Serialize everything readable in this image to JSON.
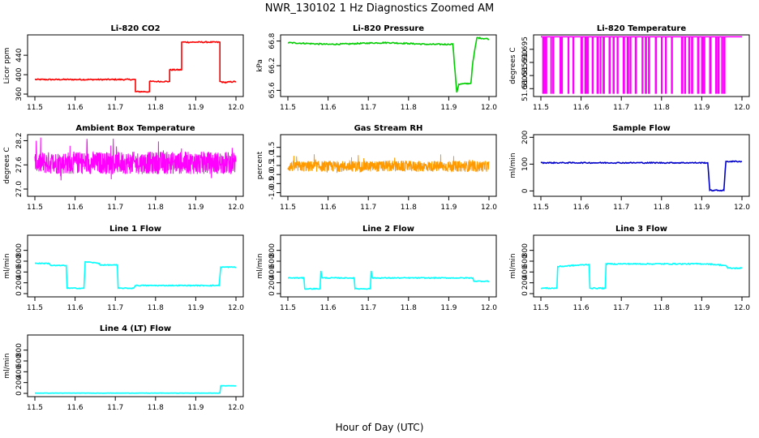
{
  "figure": {
    "title": "NWR_130102  1 Hz Diagnostics Zoomed AM",
    "xlabel": "Hour of Day (UTC)"
  },
  "chart_data": [
    {
      "type": "line",
      "title": "Li-820 CO2",
      "xlabel": "",
      "ylabel": "Licor ppm",
      "color": "#ff0000",
      "xlim": [
        11.5,
        12.0
      ],
      "ylim": [
        355,
        482
      ],
      "xticks": [
        11.5,
        11.6,
        11.7,
        11.8,
        11.9,
        12.0
      ],
      "xtick_labels": [
        "11.5",
        "11.6",
        "11.7",
        "11.8",
        "11.9",
        "12.0"
      ],
      "yticks": [
        360,
        400,
        440
      ],
      "ytick_labels": [
        "360",
        "400",
        "440"
      ],
      "x": [
        11.5,
        11.75,
        11.75,
        11.7501,
        11.7501,
        11.785,
        11.785,
        11.805,
        11.805,
        11.835,
        11.835,
        11.865,
        11.865,
        11.93,
        11.93,
        11.96,
        11.96,
        11.97,
        12.0
      ],
      "y": [
        390,
        390,
        385,
        385,
        365,
        365,
        386,
        386,
        386,
        386,
        410,
        410,
        467,
        467,
        467,
        467,
        386,
        384,
        386
      ],
      "noise": 1.2
    },
    {
      "type": "line",
      "title": "Li-820 Pressure",
      "xlabel": "",
      "ylabel": "kPa",
      "color": "#00cc00",
      "xlim": [
        11.5,
        12.0
      ],
      "ylim": [
        65.45,
        66.95
      ],
      "xticks": [
        11.5,
        11.6,
        11.7,
        11.8,
        11.9,
        12.0
      ],
      "xtick_labels": [
        "11.5",
        "11.6",
        "11.7",
        "11.8",
        "11.9",
        "12.0"
      ],
      "yticks": [
        65.6,
        66.2,
        66.8
      ],
      "ytick_labels": [
        "65.6",
        "66.2",
        "66.8"
      ],
      "x": [
        11.5,
        11.55,
        11.6,
        11.65,
        11.7,
        11.75,
        11.8,
        11.85,
        11.9,
        11.91,
        11.92,
        11.925,
        11.955,
        11.96,
        11.97,
        12.0
      ],
      "y": [
        66.76,
        66.74,
        66.72,
        66.73,
        66.75,
        66.76,
        66.74,
        66.72,
        66.72,
        66.73,
        65.55,
        65.75,
        65.77,
        66.3,
        66.88,
        66.85
      ],
      "noise": 0.015
    },
    {
      "type": "line",
      "title": "Li-820 Temperature",
      "xlabel": "",
      "ylabel": "degrees C",
      "color": "#ff00ff",
      "xlim": [
        11.5,
        12.0
      ],
      "ylim": [
        51.677,
        51.7005
      ],
      "xticks": [
        11.5,
        11.6,
        11.7,
        11.8,
        11.9,
        12.0
      ],
      "xtick_labels": [
        "11.5",
        "11.6",
        "11.7",
        "11.8",
        "11.9",
        "12.0"
      ],
      "yticks": [
        51.68,
        51.685,
        51.69,
        51.695
      ],
      "ytick_labels": [
        "51.680",
        "51.685",
        "51.690",
        "51.695"
      ],
      "levels": [
        51.6783,
        51.6998
      ],
      "drops": [
        11.505,
        11.508,
        11.512,
        11.525,
        11.53,
        11.548,
        11.552,
        11.568,
        11.58,
        11.6,
        11.61,
        11.615,
        11.628,
        11.64,
        11.648,
        11.655,
        11.67,
        11.68,
        11.69,
        11.705,
        11.715,
        11.722,
        11.735,
        11.752,
        11.76,
        11.768,
        11.785,
        11.8,
        11.81,
        11.825,
        11.85,
        11.858,
        11.868,
        11.875,
        11.89,
        11.9,
        11.905,
        11.92,
        11.935,
        11.94,
        11.95,
        11.955
      ]
    },
    {
      "type": "line",
      "title": "Ambient Box Temperature",
      "xlabel": "",
      "ylabel": "degrees C",
      "color": "#ff00ff",
      "xlim": [
        11.5,
        12.0
      ],
      "ylim": [
        26.82,
        28.35
      ],
      "xticks": [
        11.5,
        11.6,
        11.7,
        11.8,
        11.9,
        12.0
      ],
      "xtick_labels": [
        "11.5",
        "11.6",
        "11.7",
        "11.8",
        "11.9",
        "12.0"
      ],
      "yticks": [
        27.0,
        27.6,
        28.2
      ],
      "ytick_labels": [
        "27.0",
        "27.6",
        "28.2"
      ],
      "center": 27.65,
      "spread": 0.28
    },
    {
      "type": "line",
      "title": "Gas Stream RH",
      "xlabel": "",
      "ylabel": "percent",
      "color": "#ff9900",
      "xlim": [
        11.5,
        12.0
      ],
      "ylim": [
        -1.2,
        2.2
      ],
      "xticks": [
        11.5,
        11.6,
        11.7,
        11.8,
        11.9,
        12.0
      ],
      "xtick_labels": [
        "11.5",
        "11.6",
        "11.7",
        "11.8",
        "11.9",
        "12.0"
      ],
      "yticks": [
        -1.0,
        -0.5,
        0.0,
        0.5,
        1.0,
        1.5
      ],
      "ytick_labels": [
        "-1.0",
        "-0.5",
        "0.0",
        "0.5",
        "1.0",
        "1.5"
      ],
      "center": 0.45,
      "spread": 0.3
    },
    {
      "type": "line",
      "title": "Sample Flow",
      "xlabel": "",
      "ylabel": "ml/min",
      "color": "#0000cc",
      "xlim": [
        11.5,
        12.0
      ],
      "ylim": [
        -20,
        210
      ],
      "xticks": [
        11.5,
        11.6,
        11.7,
        11.8,
        11.9,
        12.0
      ],
      "xtick_labels": [
        "11.5",
        "11.6",
        "11.7",
        "11.8",
        "11.9",
        "12.0"
      ],
      "yticks": [
        0,
        100,
        200
      ],
      "ytick_labels": [
        "0",
        "100",
        "200"
      ],
      "x": [
        11.5,
        11.915,
        11.92,
        11.955,
        11.96,
        12.0
      ],
      "y": [
        105,
        105,
        2,
        2,
        110,
        110
      ],
      "noise": 2
    },
    {
      "type": "line",
      "title": "Line 1 Flow",
      "xlabel": "",
      "ylabel": "ml/min",
      "color": "#00ffff",
      "xlim": [
        11.5,
        12.0
      ],
      "ylim": [
        -60,
        1080
      ],
      "xticks": [
        11.5,
        11.6,
        11.7,
        11.8,
        11.9,
        12.0
      ],
      "xtick_labels": [
        "11.5",
        "11.6",
        "11.7",
        "11.8",
        "11.9",
        "12.0"
      ],
      "yticks": [
        0,
        200,
        400,
        600,
        800
      ],
      "ytick_labels": [
        "0",
        "200",
        "400",
        "600",
        "800"
      ],
      "x": [
        11.5,
        11.535,
        11.54,
        11.578,
        11.58,
        11.622,
        11.625,
        11.66,
        11.662,
        11.705,
        11.707,
        11.745,
        11.75,
        11.958,
        11.962,
        12.0
      ],
      "y": [
        560,
        560,
        520,
        520,
        100,
        100,
        590,
        560,
        530,
        530,
        100,
        100,
        150,
        150,
        490,
        490
      ],
      "noise": 8
    },
    {
      "type": "line",
      "title": "Line 2 Flow",
      "xlabel": "",
      "ylabel": "ml/min",
      "color": "#00ffff",
      "xlim": [
        11.5,
        12.0
      ],
      "ylim": [
        -60,
        1080
      ],
      "xticks": [
        11.5,
        11.6,
        11.7,
        11.8,
        11.9,
        12.0
      ],
      "xtick_labels": [
        "11.5",
        "11.6",
        "11.7",
        "11.8",
        "11.9",
        "12.0"
      ],
      "yticks": [
        0,
        200,
        400,
        600,
        800
      ],
      "ytick_labels": [
        "0",
        "200",
        "400",
        "600",
        "800"
      ],
      "x": [
        11.5,
        11.54,
        11.542,
        11.58,
        11.582,
        11.585,
        11.665,
        11.667,
        11.705,
        11.707,
        11.71,
        11.96,
        11.962,
        12.0
      ],
      "y": [
        290,
        290,
        90,
        90,
        420,
        290,
        290,
        90,
        90,
        420,
        290,
        290,
        230,
        230
      ],
      "noise": 8
    },
    {
      "type": "line",
      "title": "Line 3 Flow",
      "xlabel": "",
      "ylabel": "ml/min",
      "color": "#00ffff",
      "xlim": [
        11.5,
        12.0
      ],
      "ylim": [
        -60,
        1080
      ],
      "xticks": [
        11.5,
        11.6,
        11.7,
        11.8,
        11.9,
        12.0
      ],
      "xtick_labels": [
        "11.5",
        "11.6",
        "11.7",
        "11.8",
        "11.9",
        "12.0"
      ],
      "yticks": [
        0,
        200,
        400,
        600,
        800
      ],
      "ytick_labels": [
        "0",
        "200",
        "400",
        "600",
        "800"
      ],
      "x": [
        11.5,
        11.54,
        11.542,
        11.62,
        11.622,
        11.66,
        11.662,
        11.7,
        11.9,
        11.915,
        11.96,
        11.965,
        12.0
      ],
      "y": [
        100,
        100,
        500,
        540,
        100,
        100,
        550,
        550,
        550,
        550,
        520,
        470,
        470
      ],
      "noise": 10
    },
    {
      "type": "line",
      "title": "Line 4 (LT) Flow",
      "xlabel": "",
      "ylabel": "ml/min",
      "color": "#00ffff",
      "xlim": [
        11.5,
        12.0
      ],
      "ylim": [
        -60,
        1080
      ],
      "xticks": [
        11.5,
        11.6,
        11.7,
        11.8,
        11.9,
        12.0
      ],
      "xtick_labels": [
        "11.5",
        "11.6",
        "11.7",
        "11.8",
        "11.9",
        "12.0"
      ],
      "yticks": [
        0,
        200,
        400,
        600,
        800
      ],
      "ytick_labels": [
        "0",
        "200",
        "400",
        "600",
        "800"
      ],
      "x": [
        11.5,
        11.96,
        11.962,
        12.0
      ],
      "y": [
        5,
        5,
        140,
        140
      ],
      "noise": 2
    }
  ]
}
